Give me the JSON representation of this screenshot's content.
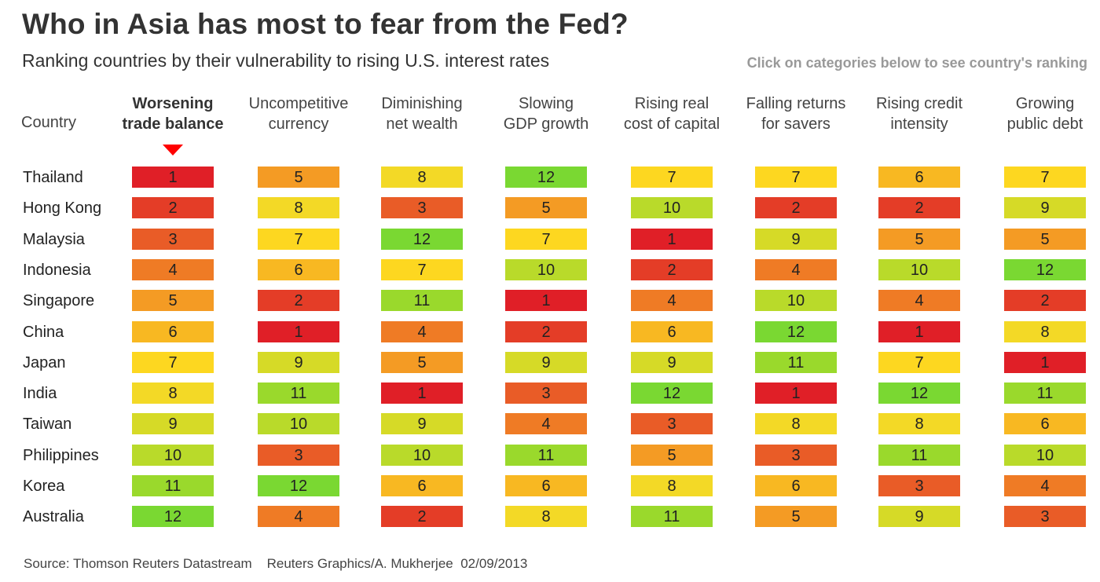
{
  "title": "Who in Asia has most to fear from the Fed?",
  "subtitle": "Ranking countries by their vulnerability to rising U.S. interest rates",
  "hint": "Click on categories below to see country's ranking",
  "source": "Source: Thomson Reuters Datastream    Reuters Graphics/A. Mukherjee  02/09/2013",
  "chart_data": {
    "type": "heatmap",
    "title": "Who in Asia has most to fear from the Fed?",
    "row_header": "Country",
    "active_category": 0,
    "categories": [
      [
        "Worsening",
        "trade balance"
      ],
      [
        "Uncompetitive",
        "currency"
      ],
      [
        "Diminishing",
        "net wealth"
      ],
      [
        "Slowing",
        "GDP growth"
      ],
      [
        "Rising real",
        "cost of capital"
      ],
      [
        "Falling returns",
        "for savers"
      ],
      [
        "Rising credit",
        "intensity"
      ],
      [
        "Growing",
        "public debt"
      ]
    ],
    "countries": [
      "Thailand",
      "Hong Kong",
      "Malaysia",
      "Indonesia",
      "Singapore",
      "China",
      "Japan",
      "India",
      "Taiwan",
      "Philippines",
      "Korea",
      "Australia"
    ],
    "values": [
      [
        1,
        5,
        8,
        12,
        7,
        7,
        6,
        7
      ],
      [
        2,
        8,
        3,
        5,
        10,
        2,
        2,
        9
      ],
      [
        3,
        7,
        12,
        7,
        1,
        9,
        5,
        5
      ],
      [
        4,
        6,
        7,
        10,
        2,
        4,
        10,
        12
      ],
      [
        5,
        2,
        11,
        1,
        4,
        10,
        4,
        2
      ],
      [
        6,
        1,
        4,
        2,
        6,
        12,
        1,
        8
      ],
      [
        7,
        9,
        5,
        9,
        9,
        11,
        7,
        1
      ],
      [
        8,
        11,
        1,
        3,
        12,
        1,
        12,
        11
      ],
      [
        9,
        10,
        9,
        4,
        3,
        8,
        8,
        6
      ],
      [
        10,
        3,
        10,
        11,
        5,
        3,
        11,
        10
      ],
      [
        11,
        12,
        6,
        6,
        8,
        6,
        3,
        4
      ],
      [
        12,
        4,
        2,
        8,
        11,
        5,
        9,
        3
      ]
    ],
    "color_scale": [
      "#e01f27",
      "#e43d27",
      "#e95c27",
      "#ef7b25",
      "#f49b24",
      "#f8b822",
      "#fdd720",
      "#f3d926",
      "#d6da27",
      "#b9da2a",
      "#9ad92c",
      "#7ad832"
    ],
    "marker_color": "#ff0000"
  }
}
